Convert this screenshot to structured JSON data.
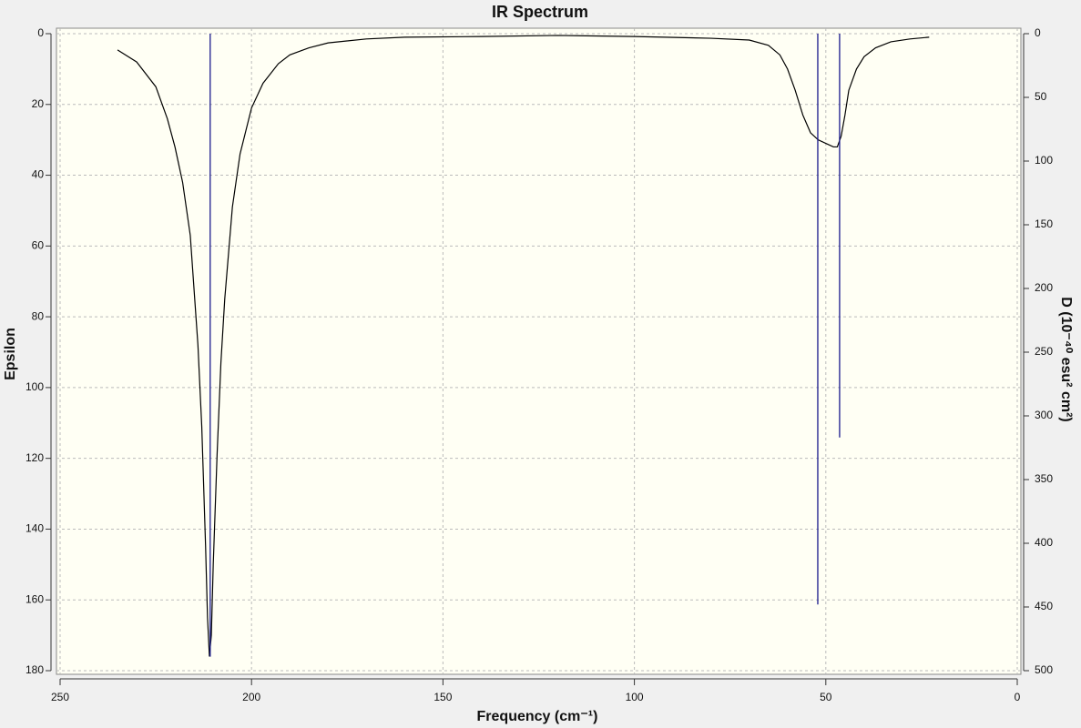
{
  "chart_data": {
    "type": "line",
    "title": "IR Spectrum",
    "x_label": "Frequency (cm⁻¹)",
    "y_label": "Epsilon",
    "y2_label": "D (10⁻⁴⁰ esu² cm²)",
    "xlim": [
      250,
      0
    ],
    "xticks": [
      250,
      200,
      150,
      100,
      50,
      0
    ],
    "ylim": [
      180,
      0
    ],
    "yticks": [
      0,
      20,
      40,
      60,
      80,
      100,
      120,
      140,
      160,
      180
    ],
    "y2lim": [
      500,
      0
    ],
    "y2ticks": [
      0,
      50,
      100,
      150,
      200,
      250,
      300,
      350,
      400,
      450,
      500
    ],
    "grid": true,
    "series": [
      {
        "color": "#000000",
        "x": [
          235,
          230,
          225,
          222,
          220,
          218,
          216,
          214,
          213,
          212,
          211.5,
          211,
          210.5,
          210,
          209,
          208,
          207,
          205,
          203,
          200,
          197,
          193,
          190,
          185,
          180,
          170,
          160,
          140,
          120,
          100,
          80,
          70,
          65,
          62,
          60,
          58,
          56,
          54,
          52,
          50,
          48,
          47,
          46,
          45,
          44,
          42,
          40,
          37,
          33,
          28,
          23
        ],
        "values": [
          4.6,
          8,
          15,
          24,
          32,
          42,
          57,
          88,
          111,
          145,
          165,
          176,
          170,
          150,
          119,
          93,
          75,
          49,
          34,
          21,
          14,
          8.5,
          6,
          4,
          2.6,
          1.5,
          1,
          0.8,
          0.5,
          0.8,
          1.3,
          1.8,
          3.3,
          6,
          10,
          16,
          23,
          28,
          30,
          31,
          32,
          32,
          29,
          23,
          16,
          10,
          6.5,
          4,
          2.3,
          1.5,
          1
        ]
      },
      {
        "type": "stick",
        "axis": "y2",
        "color": "#1a1a8c",
        "x": [
          210.8,
          52.1,
          46.4
        ],
        "values": [
          489,
          448,
          317
        ]
      }
    ]
  }
}
